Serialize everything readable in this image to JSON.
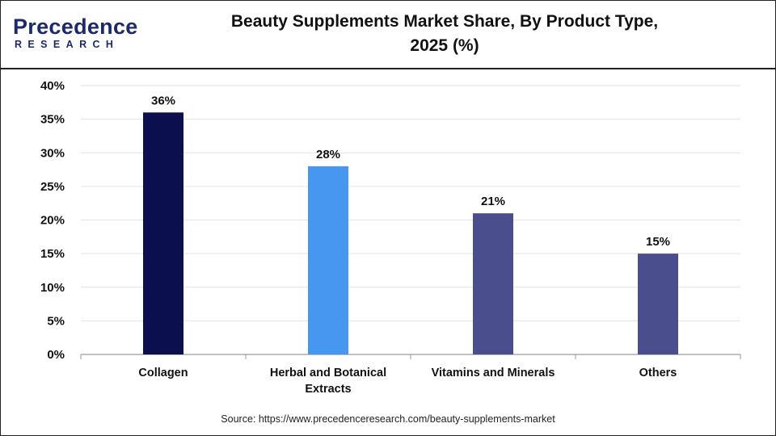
{
  "header": {
    "logo_word": "Precedence",
    "logo_sub": "RESEARCH",
    "title_line1": "Beauty Supplements Market Share, By Product Type,",
    "title_line2": "2025 (%)"
  },
  "source": "Source: https://www.precedenceresearch.com/beauty-supplements-market",
  "chart_data": {
    "type": "bar",
    "title": "Beauty Supplements Market Share, By Product Type, 2025 (%)",
    "categories": [
      "Collagen",
      "Herbal and Botanical Extracts",
      "Vitamins and Minerals",
      "Others"
    ],
    "category_lines": [
      [
        "Collagen"
      ],
      [
        "Herbal and Botanical",
        "Extracts"
      ],
      [
        "Vitamins and Minerals"
      ],
      [
        "Others"
      ]
    ],
    "values": [
      36,
      28,
      21,
      15
    ],
    "data_labels": [
      "36%",
      "28%",
      "21%",
      "15%"
    ],
    "colors": [
      "#0b0f4d",
      "#4796f0",
      "#4b4e8c",
      "#4b4e8c"
    ],
    "ylim": [
      0,
      40
    ],
    "yticks": [
      0,
      5,
      10,
      15,
      20,
      25,
      30,
      35,
      40
    ],
    "ytick_labels": [
      "0%",
      "5%",
      "10%",
      "15%",
      "20%",
      "25%",
      "30%",
      "35%",
      "40%"
    ],
    "grid": true,
    "xlabel": "",
    "ylabel": ""
  }
}
